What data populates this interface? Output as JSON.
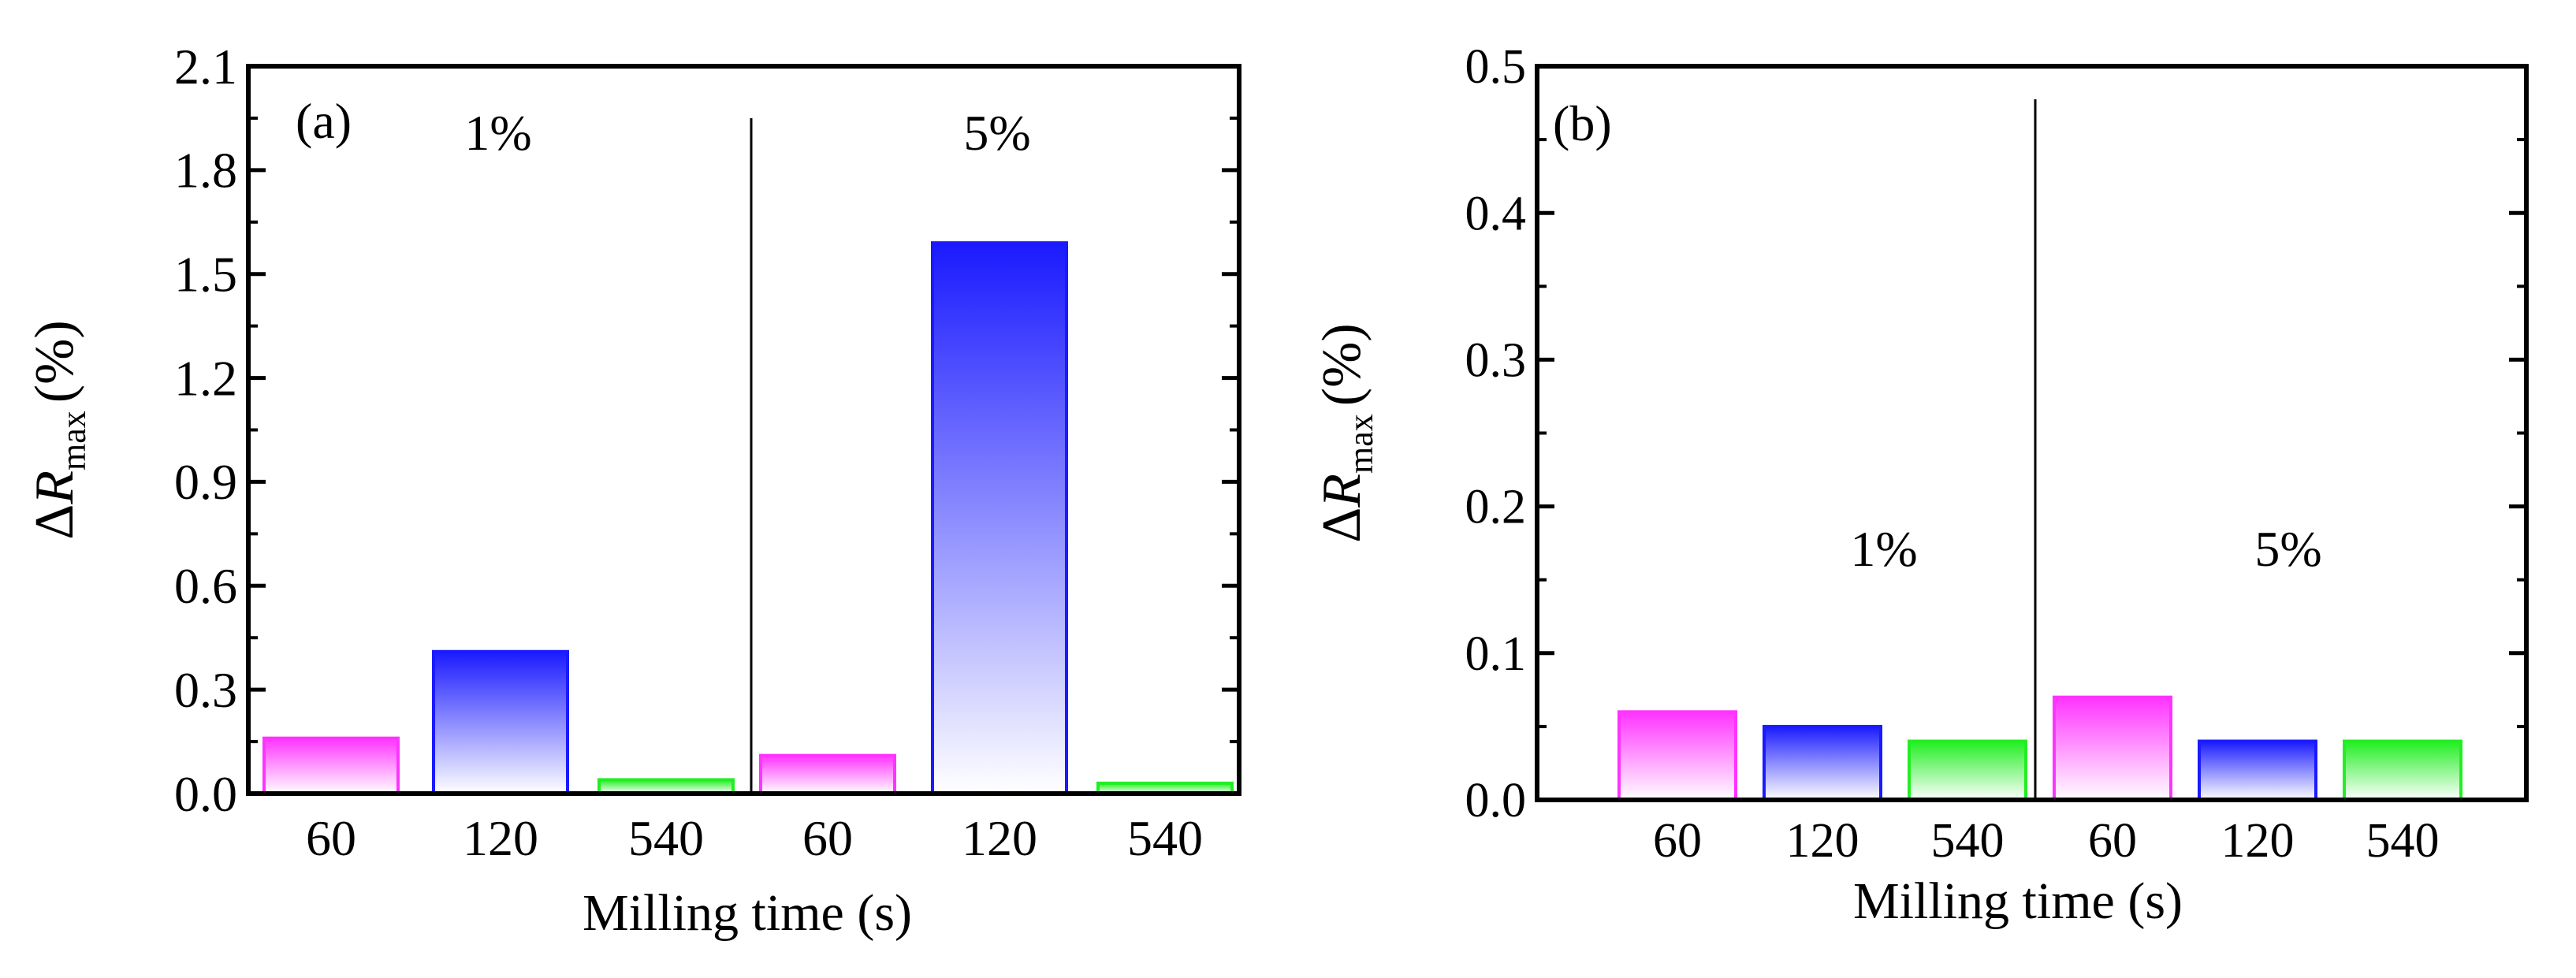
{
  "colors": {
    "magenta": "#ff33ff",
    "blue": "#1a1aff",
    "green": "#22ee22",
    "axis": "#000000"
  },
  "chart_data": [
    {
      "type": "bar",
      "panel_label": "(a)",
      "xlabel": "Milling time (s)",
      "ylabel_delta": "Δ",
      "ylabel_var": "R",
      "ylabel_sub": "max",
      "ylabel_unit": "(%)",
      "ylim": [
        0,
        2.1
      ],
      "yticks": [
        "0.0",
        "0.3",
        "0.6",
        "0.9",
        "1.2",
        "1.5",
        "1.8",
        "2.1"
      ],
      "ytick_values": [
        0,
        0.3,
        0.6,
        0.9,
        1.2,
        1.5,
        1.8,
        2.1
      ],
      "minor_tick_step": 0.15,
      "groups": [
        {
          "label": "1%",
          "categories": [
            "60",
            "120",
            "540"
          ],
          "values": [
            0.16,
            0.41,
            0.04
          ],
          "colors": [
            "#ff33ff",
            "#1a1aff",
            "#22ee22"
          ]
        },
        {
          "label": "5%",
          "categories": [
            "60",
            "120",
            "540"
          ],
          "values": [
            0.11,
            1.59,
            0.03
          ],
          "colors": [
            "#ff33ff",
            "#1a1aff",
            "#22ee22"
          ]
        }
      ]
    },
    {
      "type": "bar",
      "panel_label": "(b)",
      "xlabel": "Milling time (s)",
      "ylabel_delta": "Δ",
      "ylabel_var": "R",
      "ylabel_sub": "max",
      "ylabel_unit": "(%)",
      "ylim": [
        0,
        0.5
      ],
      "yticks": [
        "0.0",
        "0.1",
        "0.2",
        "0.3",
        "0.4",
        "0.5"
      ],
      "ytick_values": [
        0,
        0.1,
        0.2,
        0.3,
        0.4,
        0.5
      ],
      "minor_tick_step": 0.05,
      "groups": [
        {
          "label": "1%",
          "categories": [
            "60",
            "120",
            "540"
          ],
          "values": [
            0.06,
            0.05,
            0.04
          ],
          "colors": [
            "#ff33ff",
            "#1a1aff",
            "#22ee22"
          ]
        },
        {
          "label": "5%",
          "categories": [
            "60",
            "120",
            "540"
          ],
          "values": [
            0.07,
            0.04,
            0.04
          ],
          "colors": [
            "#ff33ff",
            "#1a1aff",
            "#22ee22"
          ]
        }
      ]
    }
  ]
}
